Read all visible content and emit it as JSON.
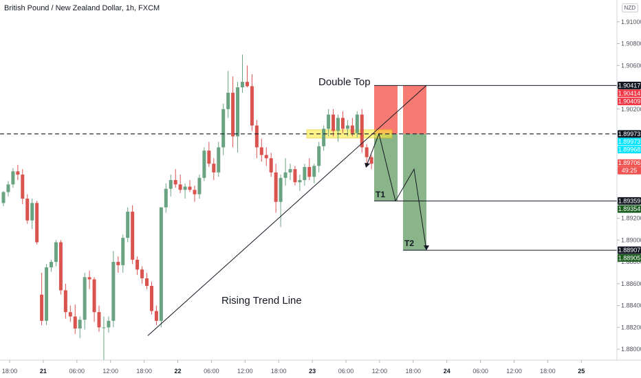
{
  "header": {
    "title": "British Pound / New Zealand Dollar, 1h, FXCM",
    "currency_badge": "NZD"
  },
  "annotations": {
    "double_top": "Double Top",
    "rising_trend_line": "Rising Trend Line",
    "t1": "T1",
    "t2": "T2"
  },
  "price_labels": [
    {
      "text": "1.90417",
      "value": 1.90417,
      "color": "#131722"
    },
    {
      "text": "1.90414",
      "value": 1.90414,
      "color": "#f23645"
    },
    {
      "text": "1.90409",
      "value": 1.90409,
      "color": "#f23645"
    },
    {
      "text": "1.89973",
      "value": 1.89973,
      "color": "#131722"
    },
    {
      "text": "1.89973",
      "value": 1.89973,
      "color": "#00e5ff",
      "dark_text": true
    },
    {
      "text": "1.89968",
      "value": 1.89968,
      "color": "#00e5ff",
      "dark_text": true
    },
    {
      "text": "1.89706",
      "value": 1.89706,
      "color": "#ef5350"
    },
    {
      "text": "49:25",
      "value": 1.89706,
      "color": "#ef5350",
      "sub": true
    },
    {
      "text": "1.89359",
      "value": 1.89359,
      "color": "#131722"
    },
    {
      "text": "1.89354",
      "value": 1.89354,
      "color": "#1b5e20"
    },
    {
      "text": "1.88907",
      "value": 1.88907,
      "color": "#131722"
    },
    {
      "text": "1.88905",
      "value": 1.88905,
      "color": "#1b5e20"
    }
  ],
  "chart_data": {
    "type": "candlestick",
    "title": "British Pound / New Zealand Dollar, 1h, FXCM",
    "y_axis": {
      "ticks": [
        "1.91000",
        "1.90800",
        "1.90600",
        "1.90400",
        "1.90200",
        "1.89200",
        "1.89000",
        "1.88800",
        "1.88600",
        "1.88400",
        "1.88200",
        "1.88000"
      ],
      "range": [
        1.879,
        1.912
      ]
    },
    "x_axis": {
      "ticks": [
        "18:00",
        "21",
        "06:00",
        "12:00",
        "18:00",
        "22",
        "06:00",
        "12:00",
        "18:00",
        "23",
        "06:00",
        "12:00",
        "18:00",
        "24",
        "06:00",
        "12:00",
        "18:00",
        "25"
      ],
      "bold_ticks": [
        "21",
        "22",
        "23",
        "24",
        "25"
      ]
    },
    "colors": {
      "up": "#6aa382",
      "down": "#d9534f"
    },
    "candles": [
      [
        1.8934,
        1.8945,
        1.8931,
        1.8944
      ],
      [
        1.8944,
        1.8954,
        1.894,
        1.8951
      ],
      [
        1.8951,
        1.8966,
        1.8948,
        1.8963
      ],
      [
        1.8963,
        1.8969,
        1.8955,
        1.896
      ],
      [
        1.896,
        1.8965,
        1.8933,
        1.8938
      ],
      [
        1.8938,
        1.8942,
        1.8915,
        1.8918
      ],
      [
        1.8918,
        1.8938,
        1.891,
        1.8934
      ],
      [
        1.8934,
        1.8936,
        1.8896,
        1.8898
      ],
      [
        1.885,
        1.887,
        1.8822,
        1.8826
      ],
      [
        1.8826,
        1.8878,
        1.8822,
        1.8875
      ],
      [
        1.8875,
        1.8882,
        1.8871,
        1.888
      ],
      [
        1.888,
        1.89,
        1.8876,
        1.8898
      ],
      [
        1.8898,
        1.89,
        1.885,
        1.8854
      ],
      [
        1.8854,
        1.886,
        1.8828,
        1.8834
      ],
      [
        1.8834,
        1.884,
        1.8825,
        1.883
      ],
      [
        1.883,
        1.8841,
        1.8814,
        1.8819
      ],
      [
        1.8819,
        1.883,
        1.881,
        1.8827
      ],
      [
        1.8827,
        1.887,
        1.8818,
        1.8866
      ],
      [
        1.8866,
        1.8872,
        1.8855,
        1.8864
      ],
      [
        1.8864,
        1.8866,
        1.8825,
        1.8834
      ],
      [
        1.8834,
        1.884,
        1.8816,
        1.882
      ],
      [
        1.882,
        1.883,
        1.879,
        1.882
      ],
      [
        1.882,
        1.883,
        1.8815,
        1.8826
      ],
      [
        1.8826,
        1.889,
        1.882,
        1.888
      ],
      [
        1.888,
        1.8885,
        1.887,
        1.8877
      ],
      [
        1.8877,
        1.8905,
        1.887,
        1.8902
      ],
      [
        1.8902,
        1.893,
        1.8898,
        1.8926
      ],
      [
        1.8926,
        1.8932,
        1.8878,
        1.8882
      ],
      [
        1.8882,
        1.8885,
        1.8868,
        1.8873
      ],
      [
        1.8873,
        1.8876,
        1.886,
        1.8865
      ],
      [
        1.8865,
        1.887,
        1.8855,
        1.8858
      ],
      [
        1.8858,
        1.8862,
        1.8832,
        1.8835
      ],
      [
        1.8835,
        1.884,
        1.8822,
        1.8826
      ],
      [
        1.8826,
        1.893,
        1.882,
        1.893
      ],
      [
        1.893,
        1.8952,
        1.8925,
        1.8947
      ],
      [
        1.8947,
        1.896,
        1.894,
        1.8955
      ],
      [
        1.8955,
        1.8965,
        1.8948,
        1.8951
      ],
      [
        1.8951,
        1.896,
        1.8943,
        1.8946
      ],
      [
        1.8946,
        1.8952,
        1.8938,
        1.8949
      ],
      [
        1.8949,
        1.8955,
        1.8944,
        1.8946
      ],
      [
        1.8946,
        1.895,
        1.8935,
        1.8942
      ],
      [
        1.8942,
        1.896,
        1.8938,
        1.8957
      ],
      [
        1.8957,
        1.8985,
        1.8954,
        1.8982
      ],
      [
        1.8982,
        1.899,
        1.8967,
        1.897
      ],
      [
        1.897,
        1.8975,
        1.8955,
        1.8962
      ],
      [
        1.8962,
        1.899,
        1.8958,
        1.8985
      ],
      [
        1.8985,
        1.9025,
        1.8978,
        1.902
      ],
      [
        1.902,
        1.9055,
        1.9012,
        1.9035
      ],
      [
        1.9035,
        1.905,
        1.8985,
        1.8995
      ],
      [
        1.8995,
        1.9045,
        1.898,
        1.904
      ],
      [
        1.904,
        1.907,
        1.9035,
        1.9045
      ],
      [
        1.9045,
        1.906,
        1.904,
        1.9041
      ],
      [
        1.9041,
        1.9052,
        1.9,
        1.9005
      ],
      [
        1.9005,
        1.901,
        1.8975,
        1.8985
      ],
      [
        1.8985,
        1.8993,
        1.8972,
        1.8978
      ],
      [
        1.8978,
        1.8985,
        1.8968,
        1.8975
      ],
      [
        1.8975,
        1.898,
        1.8958,
        1.8962
      ],
      [
        1.8962,
        1.897,
        1.8925,
        1.8935
      ],
      [
        1.8935,
        1.896,
        1.8912,
        1.8957
      ],
      [
        1.8957,
        1.8975,
        1.895,
        1.8962
      ],
      [
        1.8962,
        1.897,
        1.8955,
        1.8965
      ],
      [
        1.8965,
        1.8968,
        1.895,
        1.8953
      ],
      [
        1.8953,
        1.896,
        1.8945,
        1.8955
      ],
      [
        1.8955,
        1.897,
        1.895,
        1.8967
      ],
      [
        1.8967,
        1.8975,
        1.8955,
        1.8958
      ],
      [
        1.8958,
        1.897,
        1.8952,
        1.8968
      ],
      [
        1.8968,
        1.899,
        1.8962,
        1.8986
      ],
      [
        1.8986,
        1.9005,
        1.8982,
        1.9002
      ],
      [
        1.9002,
        1.902,
        1.8995,
        1.9015
      ],
      [
        1.9015,
        1.902,
        1.8995,
        1.9
      ],
      [
        1.9,
        1.9015,
        1.899,
        1.9012
      ],
      [
        1.9012,
        1.9018,
        1.8998,
        1.9002
      ],
      [
        1.9002,
        1.901,
        1.8995,
        1.9005
      ],
      [
        1.9005,
        1.9012,
        1.8995,
        1.8998
      ],
      [
        1.8998,
        1.9018,
        1.8994,
        1.9015
      ],
      [
        1.9015,
        1.902,
        1.898,
        1.8985
      ],
      [
        1.8985,
        1.8988,
        1.8968,
        1.8976
      ],
      [
        1.8976,
        1.8978,
        1.8965,
        1.897
      ]
    ],
    "levels": {
      "stop_loss": 1.90417,
      "entry_dashed": 1.89973,
      "t1": 1.89359,
      "t2": 1.88907
    },
    "trend_line": {
      "from": {
        "candle": 21,
        "price": 1.8825
      },
      "to": {
        "price": 1.90417
      }
    }
  }
}
